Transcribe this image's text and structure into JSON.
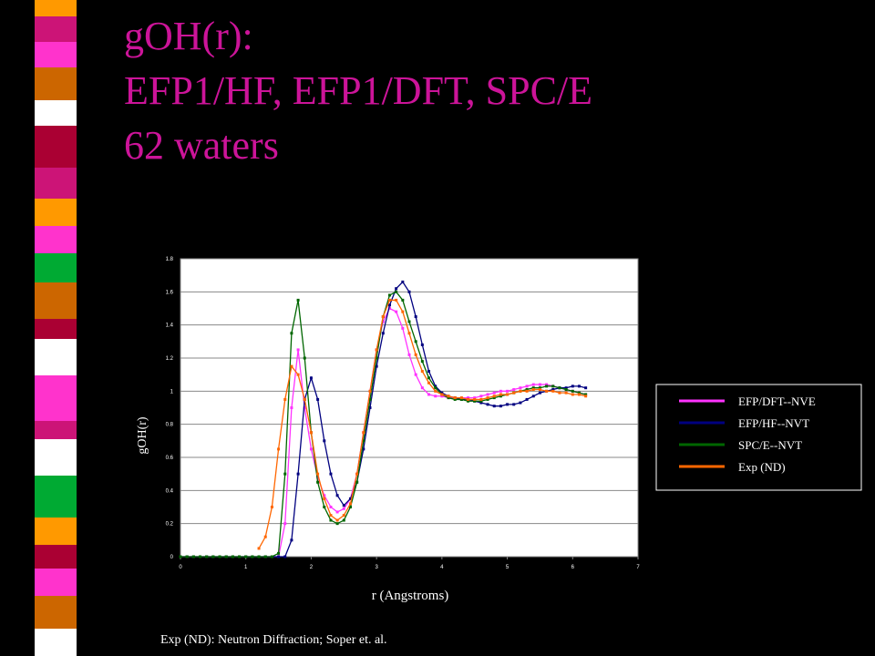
{
  "title_lines": [
    "gOH(r):",
    "EFP1/HF, EFP1/DFT, SPC/E",
    "62 waters"
  ],
  "footnote": "Exp (ND):  Neutron Diffraction; Soper et. al.",
  "chart_data": {
    "type": "line",
    "xlabel": "r (Angstroms)",
    "ylabel": "gOH(r)",
    "xlim": [
      0,
      7
    ],
    "xticks": [
      0,
      1,
      2,
      3,
      4,
      5,
      6,
      7
    ],
    "ylim": [
      0,
      1.8
    ],
    "yticks": [
      0,
      0.2,
      0.4,
      0.6,
      0.8,
      1,
      1.2,
      1.4,
      1.6,
      1.8
    ],
    "grid": true,
    "legend": "right",
    "x": [
      0,
      0.1,
      0.2,
      0.3,
      0.4,
      0.5,
      0.6,
      0.7,
      0.8,
      0.9,
      1,
      1.1,
      1.2,
      1.3,
      1.4,
      1.5,
      1.6,
      1.7,
      1.8,
      1.9,
      2,
      2.1,
      2.2,
      2.3,
      2.4,
      2.5,
      2.6,
      2.7,
      2.8,
      2.9,
      3,
      3.1,
      3.2,
      3.3,
      3.4,
      3.5,
      3.6,
      3.7,
      3.8,
      3.9,
      4,
      4.1,
      4.2,
      4.3,
      4.4,
      4.5,
      4.6,
      4.7,
      4.8,
      4.9,
      5,
      5.1,
      5.2,
      5.3,
      5.4,
      5.5,
      5.6,
      5.7,
      5.8,
      5.9,
      6,
      6.1,
      6.2
    ],
    "series": [
      {
        "name": "EFP/DFT--NVE",
        "color": "#ff33ff",
        "values": [
          0,
          0,
          0,
          0,
          0,
          0,
          0,
          0,
          0,
          0,
          0,
          0,
          0,
          0,
          0,
          0,
          0.2,
          0.9,
          1.25,
          0.9,
          0.65,
          0.48,
          0.37,
          0.3,
          0.27,
          0.29,
          0.35,
          0.5,
          0.75,
          1.0,
          1.25,
          1.42,
          1.5,
          1.48,
          1.38,
          1.22,
          1.1,
          1.02,
          0.98,
          0.97,
          0.97,
          0.96,
          0.96,
          0.96,
          0.96,
          0.96,
          0.97,
          0.98,
          0.99,
          1.0,
          1.0,
          1.01,
          1.02,
          1.03,
          1.04,
          1.04,
          1.04,
          1.03,
          1.02,
          1.01,
          1.0,
          0.99,
          0.98
        ]
      },
      {
        "name": "EFP/HF--NVT",
        "color": "#000080",
        "values": [
          0,
          0,
          0,
          0,
          0,
          0,
          0,
          0,
          0,
          0,
          0,
          0,
          0,
          0,
          0,
          0,
          0,
          0.1,
          0.5,
          0.95,
          1.08,
          0.95,
          0.7,
          0.5,
          0.37,
          0.31,
          0.35,
          0.45,
          0.65,
          0.9,
          1.15,
          1.35,
          1.52,
          1.62,
          1.66,
          1.6,
          1.45,
          1.28,
          1.12,
          1.03,
          0.99,
          0.97,
          0.96,
          0.95,
          0.95,
          0.94,
          0.93,
          0.92,
          0.91,
          0.91,
          0.92,
          0.92,
          0.93,
          0.95,
          0.97,
          0.99,
          1.0,
          1.01,
          1.02,
          1.02,
          1.03,
          1.03,
          1.02
        ]
      },
      {
        "name": "SPC/E--NVT",
        "color": "#006600",
        "values": [
          0,
          0,
          0,
          0,
          0,
          0,
          0,
          0,
          0,
          0,
          0,
          0,
          0,
          0,
          0,
          0.02,
          0.5,
          1.35,
          1.55,
          1.2,
          0.75,
          0.45,
          0.3,
          0.22,
          0.2,
          0.22,
          0.3,
          0.45,
          0.7,
          0.95,
          1.2,
          1.45,
          1.58,
          1.6,
          1.55,
          1.42,
          1.3,
          1.18,
          1.08,
          1.02,
          0.98,
          0.96,
          0.95,
          0.95,
          0.94,
          0.94,
          0.94,
          0.95,
          0.96,
          0.97,
          0.98,
          0.99,
          1.0,
          1.01,
          1.02,
          1.02,
          1.03,
          1.03,
          1.02,
          1.01,
          1.0,
          0.99,
          0.98
        ]
      },
      {
        "name": "Exp (ND)",
        "color": "#ff6600",
        "values": [
          null,
          null,
          null,
          null,
          null,
          null,
          null,
          null,
          null,
          null,
          null,
          null,
          0.05,
          0.12,
          0.3,
          0.65,
          0.95,
          1.15,
          1.1,
          0.95,
          0.75,
          0.5,
          0.35,
          0.25,
          0.22,
          0.25,
          0.32,
          0.5,
          0.75,
          1.0,
          1.25,
          1.45,
          1.55,
          1.55,
          1.48,
          1.35,
          1.22,
          1.12,
          1.05,
          1.0,
          0.98,
          0.97,
          0.96,
          0.96,
          0.95,
          0.95,
          0.95,
          0.96,
          0.97,
          0.98,
          0.98,
          0.99,
          1.0,
          1.0,
          1.01,
          1.01,
          1.0,
          1.0,
          0.99,
          0.99,
          0.98,
          0.98,
          0.97
        ]
      }
    ]
  }
}
